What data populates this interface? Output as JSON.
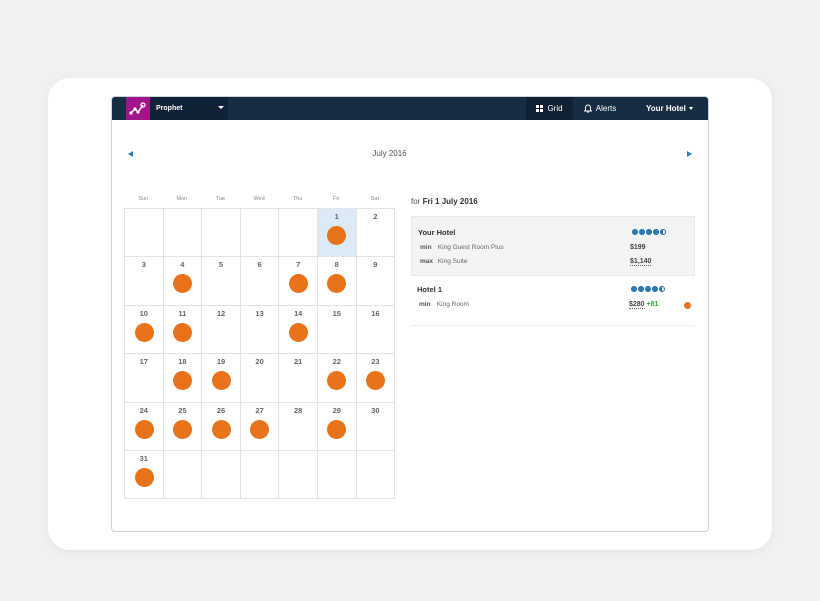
{
  "app": {
    "product": "Prophet",
    "nav_grid": "Grid",
    "nav_alerts": "Alerts",
    "nav_hotel": "Your Hotel"
  },
  "calendar": {
    "month_label": "July 2016",
    "weekdays": [
      "Sun",
      "Mon",
      "Tue",
      "Wed",
      "Thu",
      "Fri",
      "Sat"
    ],
    "first_weekday_index": 5,
    "days_in_month": 31,
    "selected_day": 1,
    "days_with_alert_marker": [
      1,
      4,
      7,
      8,
      10,
      11,
      14,
      18,
      19,
      22,
      23,
      24,
      25,
      26,
      27,
      29,
      31
    ]
  },
  "panel": {
    "prefix": "for",
    "date": "Fri 1 July 2016",
    "hotels": [
      {
        "name": "Your Hotel",
        "stars": 4.5,
        "rates": [
          {
            "kind": "min",
            "room": "King Guest Room Plus",
            "price": "$199"
          },
          {
            "kind": "max",
            "room": "King Suite",
            "price": "$1,140"
          }
        ]
      },
      {
        "name": "Hotel 1",
        "stars": 4.5,
        "rates": [
          {
            "kind": "min",
            "room": "King Room",
            "price": "$280",
            "delta": "+81"
          }
        ]
      }
    ]
  },
  "colors": {
    "topbar": "#172d44",
    "logo": "#a0168a",
    "accent": "#2a7fc0",
    "alert_marker": "#e8731a",
    "selected": "#dce9f6",
    "positive": "#3aaa35"
  }
}
